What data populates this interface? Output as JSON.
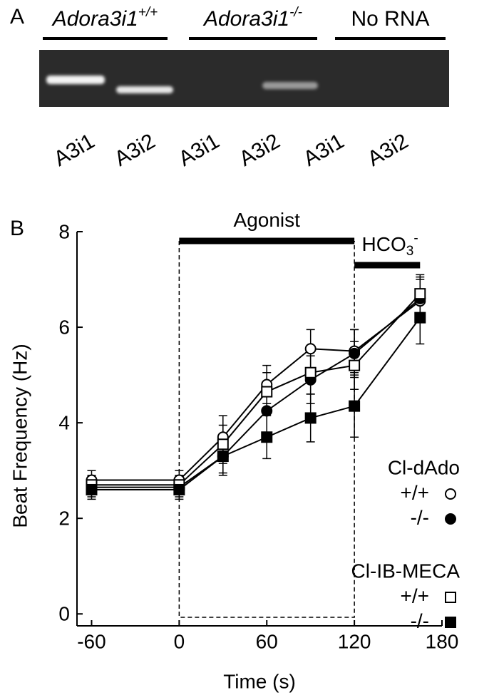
{
  "gel": {
    "panel_label": "A",
    "groups": [
      {
        "text": "Adora3i1",
        "sup": "+/+"
      },
      {
        "text": "Adora3i1",
        "sup": "-/-"
      },
      {
        "text": "No RNA"
      }
    ],
    "lanes": [
      "A3i1",
      "A3i2",
      "A3i1",
      "A3i2",
      "A3i1",
      "A3i2"
    ]
  },
  "chart_data": {
    "type": "line",
    "panel_label": "B",
    "x_label": "Time (s)",
    "y_label": "Beat Frequency (Hz)",
    "x": [
      -60,
      0,
      30,
      60,
      90,
      120,
      165
    ],
    "xlim": [
      -70,
      180
    ],
    "xticks": [
      -60,
      0,
      60,
      120,
      180
    ],
    "ylim": [
      -0.25,
      8
    ],
    "yticks": [
      0,
      2,
      4,
      6,
      8
    ],
    "annotations": [
      {
        "text": "Agonist",
        "start": 0,
        "end": 120
      },
      {
        "text": "HCO",
        "sub": "3",
        "sup": "-",
        "start": 120,
        "end": 165
      }
    ],
    "series": [
      {
        "group": "Cl-dAdo",
        "name": "+/+",
        "marker": "circle",
        "filled": false,
        "color": "#000000",
        "values": [
          2.8,
          2.8,
          3.7,
          4.8,
          5.55,
          5.5,
          6.55
        ],
        "errors": [
          0.2,
          0.2,
          0.45,
          0.4,
          0.4,
          0.45,
          0.45
        ]
      },
      {
        "group": "Cl-dAdo",
        "name": "-/-",
        "marker": "circle",
        "filled": true,
        "color": "#000000",
        "values": [
          2.65,
          2.65,
          3.3,
          4.25,
          4.9,
          5.45,
          6.6
        ],
        "errors": [
          0.2,
          0.2,
          0.35,
          0.45,
          0.5,
          0.5,
          0.45
        ]
      },
      {
        "group": "Cl-IB-MECA",
        "name": "+/+",
        "marker": "square",
        "filled": false,
        "color": "#000000",
        "values": [
          2.7,
          2.7,
          3.55,
          4.65,
          5.05,
          5.2,
          6.7
        ],
        "errors": [
          0.2,
          0.2,
          0.4,
          0.4,
          0.45,
          0.5,
          0.4
        ]
      },
      {
        "group": "Cl-IB-MECA",
        "name": "-/-",
        "marker": "square",
        "filled": true,
        "color": "#000000",
        "values": [
          2.6,
          2.6,
          3.3,
          3.7,
          4.1,
          4.35,
          6.2
        ],
        "errors": [
          0.2,
          0.2,
          0.4,
          0.45,
          0.5,
          0.65,
          0.55
        ]
      }
    ]
  }
}
